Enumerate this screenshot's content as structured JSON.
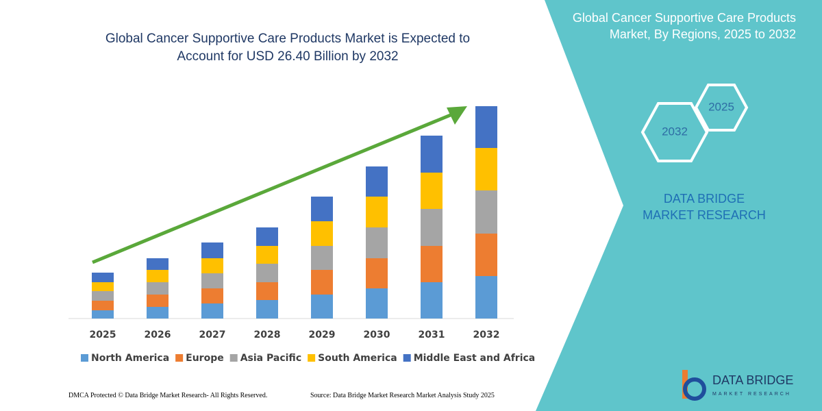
{
  "chart_data": {
    "type": "bar",
    "stacked": true,
    "title": "Global Cancer Supportive Care Products Market is Expected to Account for USD 26.40 Billion by 2032",
    "categories": [
      "2025",
      "2026",
      "2027",
      "2028",
      "2029",
      "2030",
      "2031",
      "2032"
    ],
    "series": [
      {
        "name": "North America",
        "color": "#5b9bd5",
        "values": [
          12,
          17,
          22,
          27,
          35,
          44,
          53,
          62
        ]
      },
      {
        "name": "Europe",
        "color": "#ed7d31",
        "values": [
          14,
          18,
          22,
          26,
          36,
          44,
          53,
          62
        ]
      },
      {
        "name": "Asia Pacific",
        "color": "#a5a5a5",
        "values": [
          14,
          18,
          22,
          27,
          35,
          45,
          54,
          63
        ]
      },
      {
        "name": "South America",
        "color": "#ffc000",
        "values": [
          13,
          18,
          22,
          26,
          36,
          45,
          53,
          62
        ]
      },
      {
        "name": "Middle East and Africa",
        "color": "#4472c4",
        "values": [
          14,
          17,
          23,
          27,
          36,
          44,
          54,
          61
        ]
      }
    ],
    "ylim": [
      0,
      310
    ],
    "trend_color": "#5aa83a"
  },
  "side_panel": {
    "title": "Global Cancer Supportive Care Products Market, By Regions, 2025 to 2032",
    "hexagons": [
      "2025",
      "2032"
    ],
    "brand": "DATA BRIDGE MARKET RESEARCH"
  },
  "logo": {
    "name": "DATA BRIDGE",
    "tagline": "MARKET RESEARCH"
  },
  "footer": {
    "left": "DMCA Protected © Data Bridge Market Research-  All Rights Reserved.",
    "right": "Source: Data Bridge Market Research  Market Analysis Study 2025"
  }
}
